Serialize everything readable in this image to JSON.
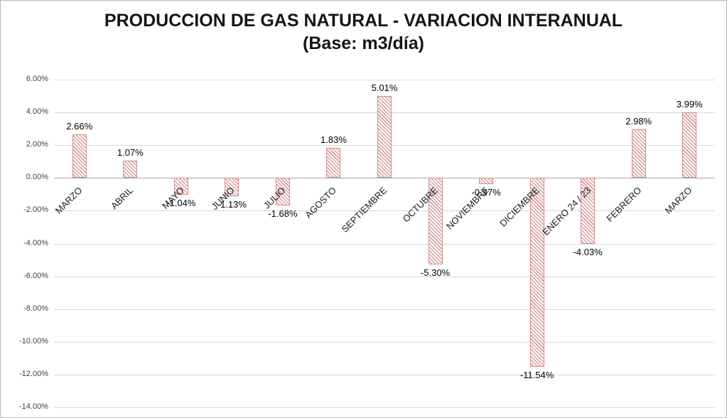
{
  "chart_data": {
    "type": "bar",
    "title": "PRODUCCION DE GAS NATURAL - VARIACION INTERANUAL",
    "subtitle": "(Base: m3/día)",
    "categories": [
      "MARZO",
      "ABRIL",
      "MAYO",
      "JUNIO",
      "JULIO",
      "AGOSTO",
      "SEPTIEMBRE",
      "OCTUBRE",
      "NOVIEMBRE",
      "DICIEMBRE",
      "ENERO 24 / 23",
      "FEBRERO",
      "MARZO"
    ],
    "values": [
      2.66,
      1.07,
      -1.04,
      -1.13,
      -1.68,
      1.83,
      5.01,
      -5.3,
      -0.37,
      -11.54,
      -4.03,
      2.98,
      3.99
    ],
    "value_labels": [
      "2.66%",
      "1.07%",
      "-1.04%",
      "-1.13%",
      "-1.68%",
      "1.83%",
      "5.01%",
      "-5.30%",
      "-0.37%",
      "-11.54%",
      "-4.03%",
      "2.98%",
      "3.99%"
    ],
    "yticks": [
      "6.00%",
      "4.00%",
      "2.00%",
      "0.00%",
      "-2.00%",
      "-4.00%",
      "-6.00%",
      "-8.00%",
      "-10.00%",
      "-12.00%",
      "-14.00%"
    ],
    "ylim": [
      -14,
      6
    ],
    "ytick_step": 2,
    "xlabel": "",
    "ylabel": "",
    "grid": true,
    "legend": "none",
    "bar_stripe_color": "#dc9c9c",
    "bar_border_color": "#cf8f8f",
    "gridline_color": "#d9d9d9",
    "zero_axis_color": "#a6a6a6"
  }
}
